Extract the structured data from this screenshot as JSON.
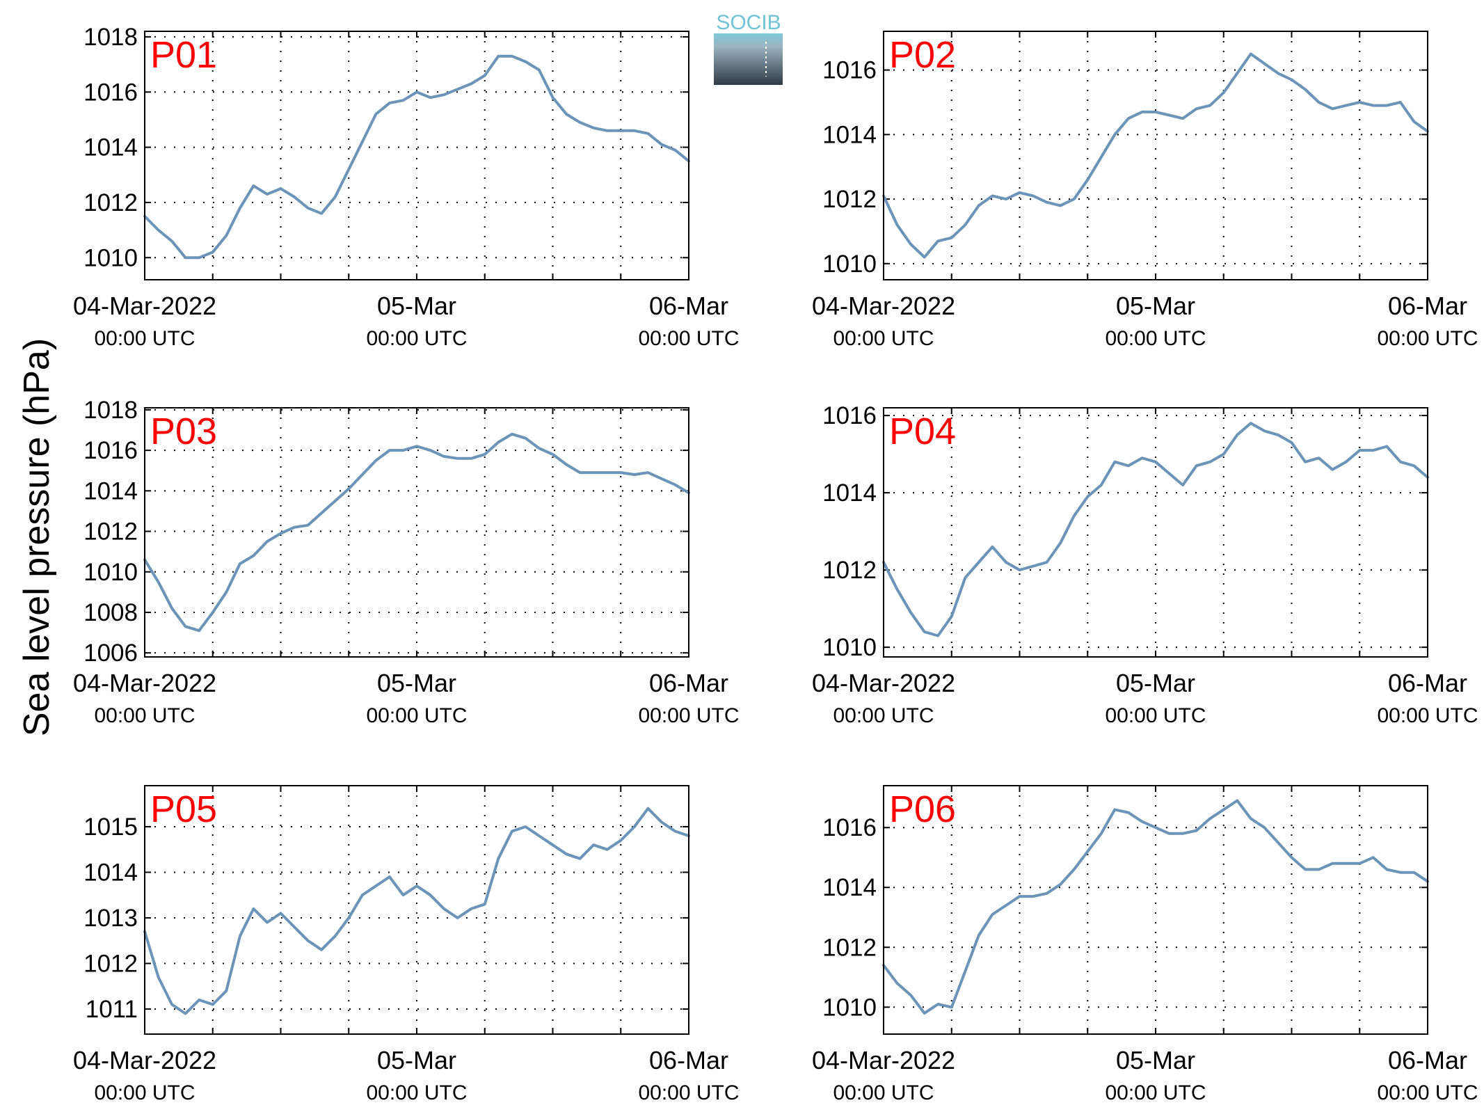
{
  "figure": {
    "ylabel": "Sea level pressure (hPa)",
    "logo_text": "SOCIB",
    "line_color": "#6a94b8",
    "panel_label_color": "#ff0000"
  },
  "chart_data": [
    {
      "type": "line",
      "name": "P01",
      "x_ticks": [
        {
          "day": 0,
          "line1": "04-Mar-2022",
          "line2": "00:00 UTC"
        },
        {
          "day": 1,
          "line1": "05-Mar",
          "line2": "00:00 UTC"
        },
        {
          "day": 2,
          "line1": "06-Mar",
          "line2": "00:00 UTC"
        }
      ],
      "xlim_days": [
        0,
        2
      ],
      "ylim": [
        1009.2,
        1018.2
      ],
      "yticks": [
        1010,
        1012,
        1014,
        1016,
        1018
      ],
      "grid": true,
      "x_days": [
        0,
        0.05,
        0.1,
        0.15,
        0.2,
        0.25,
        0.3,
        0.35,
        0.4,
        0.45,
        0.5,
        0.55,
        0.6,
        0.65,
        0.7,
        0.75,
        0.8,
        0.85,
        0.9,
        0.95,
        1,
        1.05,
        1.1,
        1.15,
        1.2,
        1.25,
        1.3,
        1.35,
        1.4,
        1.45,
        1.5,
        1.55,
        1.6,
        1.65,
        1.7,
        1.75,
        1.8,
        1.85,
        1.9,
        1.95,
        2
      ],
      "y": [
        1011.5,
        1011,
        1010.6,
        1010,
        1010,
        1010.2,
        1010.8,
        1011.8,
        1012.6,
        1012.3,
        1012.5,
        1012.2,
        1011.8,
        1011.6,
        1012.2,
        1013.2,
        1014.2,
        1015.2,
        1015.6,
        1015.7,
        1016,
        1015.8,
        1015.9,
        1016.1,
        1016.3,
        1016.6,
        1017.3,
        1017.3,
        1017.1,
        1016.8,
        1015.8,
        1015.2,
        1014.9,
        1014.7,
        1014.6,
        1014.6,
        1014.6,
        1014.5,
        1014.1,
        1013.9,
        1013.5
      ]
    },
    {
      "type": "line",
      "name": "P02",
      "x_ticks": [
        {
          "day": 0,
          "line1": "04-Mar-2022",
          "line2": "00:00 UTC"
        },
        {
          "day": 1,
          "line1": "05-Mar",
          "line2": "00:00 UTC"
        },
        {
          "day": 2,
          "line1": "06-Mar",
          "line2": "00:00 UTC"
        }
      ],
      "xlim_days": [
        0,
        2
      ],
      "ylim": [
        1009.5,
        1017.2
      ],
      "yticks": [
        1010,
        1012,
        1014,
        1016
      ],
      "grid": true,
      "x_days": [
        0,
        0.05,
        0.1,
        0.15,
        0.2,
        0.25,
        0.3,
        0.35,
        0.4,
        0.45,
        0.5,
        0.55,
        0.6,
        0.65,
        0.7,
        0.75,
        0.8,
        0.85,
        0.9,
        0.95,
        1,
        1.05,
        1.1,
        1.15,
        1.2,
        1.25,
        1.3,
        1.35,
        1.4,
        1.45,
        1.5,
        1.55,
        1.6,
        1.65,
        1.7,
        1.75,
        1.8,
        1.85,
        1.9,
        1.95,
        2
      ],
      "y": [
        1012.1,
        1011.2,
        1010.6,
        1010.2,
        1010.7,
        1010.8,
        1011.2,
        1011.8,
        1012.1,
        1012,
        1012.2,
        1012.1,
        1011.9,
        1011.8,
        1012,
        1012.6,
        1013.3,
        1014,
        1014.5,
        1014.7,
        1014.7,
        1014.6,
        1014.5,
        1014.8,
        1014.9,
        1015.3,
        1015.9,
        1016.5,
        1016.2,
        1015.9,
        1015.7,
        1015.4,
        1015,
        1014.8,
        1014.9,
        1015,
        1014.9,
        1014.9,
        1015,
        1014.4,
        1014.1
      ]
    },
    {
      "type": "line",
      "name": "P03",
      "x_ticks": [
        {
          "day": 0,
          "line1": "04-Mar-2022",
          "line2": "00:00 UTC"
        },
        {
          "day": 1,
          "line1": "05-Mar",
          "line2": "00:00 UTC"
        },
        {
          "day": 2,
          "line1": "06-Mar",
          "line2": "00:00 UTC"
        }
      ],
      "xlim_days": [
        0,
        2
      ],
      "ylim": [
        1005.8,
        1018.1
      ],
      "yticks": [
        1006,
        1008,
        1010,
        1012,
        1014,
        1016,
        1018
      ],
      "grid": true,
      "x_days": [
        0,
        0.05,
        0.1,
        0.15,
        0.2,
        0.25,
        0.3,
        0.35,
        0.4,
        0.45,
        0.5,
        0.55,
        0.6,
        0.65,
        0.7,
        0.75,
        0.8,
        0.85,
        0.9,
        0.95,
        1,
        1.05,
        1.1,
        1.15,
        1.2,
        1.25,
        1.3,
        1.35,
        1.4,
        1.45,
        1.5,
        1.55,
        1.6,
        1.65,
        1.7,
        1.75,
        1.8,
        1.85,
        1.9,
        1.95,
        2
      ],
      "y": [
        1010.6,
        1009.5,
        1008.2,
        1007.3,
        1007.1,
        1008,
        1009,
        1010.4,
        1010.8,
        1011.5,
        1011.9,
        1012.2,
        1012.3,
        1012.9,
        1013.5,
        1014.1,
        1014.8,
        1015.5,
        1016,
        1016,
        1016.2,
        1016,
        1015.7,
        1015.6,
        1015.6,
        1015.8,
        1016.4,
        1016.8,
        1016.6,
        1016.1,
        1015.8,
        1015.3,
        1014.9,
        1014.9,
        1014.9,
        1014.9,
        1014.8,
        1014.9,
        1014.6,
        1014.3,
        1013.9
      ]
    },
    {
      "type": "line",
      "name": "P04",
      "x_ticks": [
        {
          "day": 0,
          "line1": "04-Mar-2022",
          "line2": "00:00 UTC"
        },
        {
          "day": 1,
          "line1": "05-Mar",
          "line2": "00:00 UTC"
        },
        {
          "day": 2,
          "line1": "06-Mar",
          "line2": "00:00 UTC"
        }
      ],
      "xlim_days": [
        0,
        2
      ],
      "ylim": [
        1009.75,
        1016.2
      ],
      "yticks": [
        1010,
        1012,
        1014,
        1016
      ],
      "grid": true,
      "x_days": [
        0,
        0.05,
        0.1,
        0.15,
        0.2,
        0.25,
        0.3,
        0.35,
        0.4,
        0.45,
        0.5,
        0.55,
        0.6,
        0.65,
        0.7,
        0.75,
        0.8,
        0.85,
        0.9,
        0.95,
        1,
        1.05,
        1.1,
        1.15,
        1.2,
        1.25,
        1.3,
        1.35,
        1.4,
        1.45,
        1.5,
        1.55,
        1.6,
        1.65,
        1.7,
        1.75,
        1.8,
        1.85,
        1.9,
        1.95,
        2
      ],
      "y": [
        1012.2,
        1011.5,
        1010.9,
        1010.4,
        1010.3,
        1010.8,
        1011.8,
        1012.2,
        1012.6,
        1012.2,
        1012,
        1012.1,
        1012.2,
        1012.7,
        1013.4,
        1013.9,
        1014.2,
        1014.8,
        1014.7,
        1014.9,
        1014.8,
        1014.5,
        1014.2,
        1014.7,
        1014.8,
        1015,
        1015.5,
        1015.8,
        1015.6,
        1015.5,
        1015.3,
        1014.8,
        1014.9,
        1014.6,
        1014.8,
        1015.1,
        1015.1,
        1015.2,
        1014.8,
        1014.7,
        1014.4
      ]
    },
    {
      "type": "line",
      "name": "P05",
      "x_ticks": [
        {
          "day": 0,
          "line1": "04-Mar-2022",
          "line2": "00:00 UTC"
        },
        {
          "day": 1,
          "line1": "05-Mar",
          "line2": "00:00 UTC"
        },
        {
          "day": 2,
          "line1": "06-Mar",
          "line2": "00:00 UTC"
        }
      ],
      "xlim_days": [
        0,
        2
      ],
      "ylim": [
        1010.45,
        1015.9
      ],
      "yticks": [
        1011,
        1012,
        1013,
        1014,
        1015
      ],
      "grid": true,
      "x_days": [
        0,
        0.05,
        0.1,
        0.15,
        0.2,
        0.25,
        0.3,
        0.35,
        0.4,
        0.45,
        0.5,
        0.55,
        0.6,
        0.65,
        0.7,
        0.75,
        0.8,
        0.85,
        0.9,
        0.95,
        1,
        1.05,
        1.1,
        1.15,
        1.2,
        1.25,
        1.3,
        1.35,
        1.4,
        1.45,
        1.5,
        1.55,
        1.6,
        1.65,
        1.7,
        1.75,
        1.8,
        1.85,
        1.9,
        1.95,
        2
      ],
      "y": [
        1012.7,
        1011.7,
        1011.1,
        1010.9,
        1011.2,
        1011.1,
        1011.4,
        1012.6,
        1013.2,
        1012.9,
        1013.1,
        1012.8,
        1012.5,
        1012.3,
        1012.6,
        1013,
        1013.5,
        1013.7,
        1013.9,
        1013.5,
        1013.7,
        1013.5,
        1013.2,
        1013,
        1013.2,
        1013.3,
        1014.3,
        1014.9,
        1015,
        1014.8,
        1014.6,
        1014.4,
        1014.3,
        1014.6,
        1014.5,
        1014.7,
        1015,
        1015.4,
        1015.1,
        1014.9,
        1014.8
      ]
    },
    {
      "type": "line",
      "name": "P06",
      "x_ticks": [
        {
          "day": 0,
          "line1": "04-Mar-2022",
          "line2": "00:00 UTC"
        },
        {
          "day": 1,
          "line1": "05-Mar",
          "line2": "00:00 UTC"
        },
        {
          "day": 2,
          "line1": "06-Mar",
          "line2": "00:00 UTC"
        }
      ],
      "xlim_days": [
        0,
        2
      ],
      "ylim": [
        1009.1,
        1017.4
      ],
      "yticks": [
        1010,
        1012,
        1014,
        1016
      ],
      "grid": true,
      "x_days": [
        0,
        0.05,
        0.1,
        0.15,
        0.2,
        0.25,
        0.3,
        0.35,
        0.4,
        0.45,
        0.5,
        0.55,
        0.6,
        0.65,
        0.7,
        0.75,
        0.8,
        0.85,
        0.9,
        0.95,
        1,
        1.05,
        1.1,
        1.15,
        1.2,
        1.25,
        1.3,
        1.35,
        1.4,
        1.45,
        1.5,
        1.55,
        1.6,
        1.65,
        1.7,
        1.75,
        1.8,
        1.85,
        1.9,
        1.95,
        2
      ],
      "y": [
        1011.4,
        1010.8,
        1010.4,
        1009.8,
        1010.1,
        1010,
        1011.2,
        1012.4,
        1013.1,
        1013.4,
        1013.7,
        1013.7,
        1013.8,
        1014.1,
        1014.6,
        1015.2,
        1015.8,
        1016.6,
        1016.5,
        1016.2,
        1016,
        1015.8,
        1015.8,
        1015.9,
        1016.3,
        1016.6,
        1016.9,
        1016.3,
        1016,
        1015.5,
        1015,
        1014.6,
        1014.6,
        1014.8,
        1014.8,
        1014.8,
        1015,
        1014.6,
        1014.5,
        1014.5,
        1014.2
      ]
    }
  ]
}
